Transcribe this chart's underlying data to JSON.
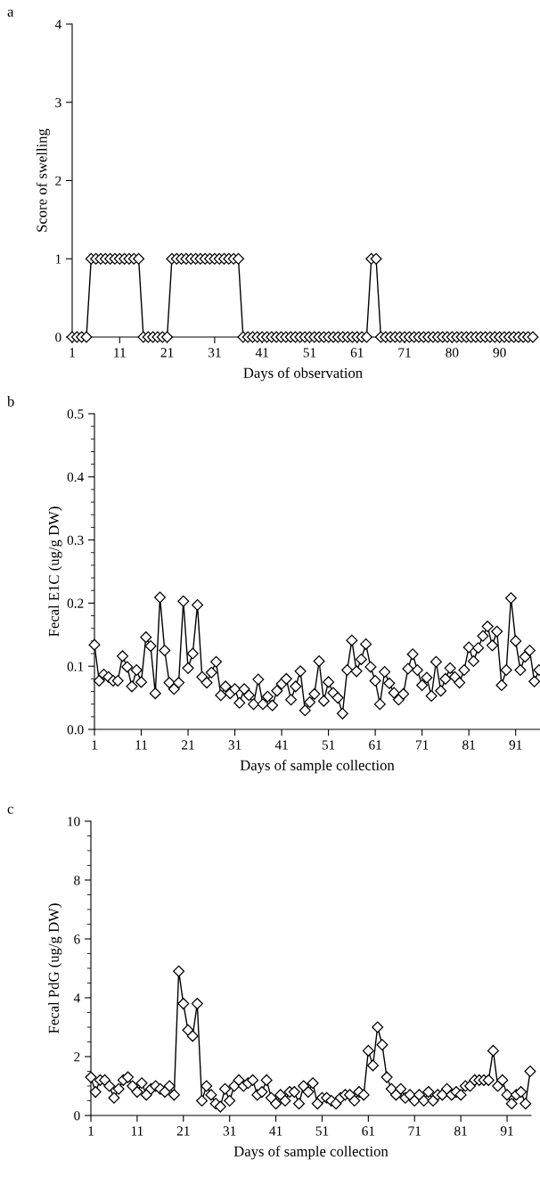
{
  "chart_data": [
    {
      "type": "line",
      "annotations": [
        "a"
      ],
      "xlabel": "Days of observation",
      "ylabel": "Score of swelling",
      "color": "#000000",
      "marker": "diamond",
      "grid": false,
      "categories": [
        "1",
        null,
        null,
        null,
        null,
        null,
        null,
        null,
        null,
        null,
        "11",
        null,
        null,
        null,
        null,
        null,
        null,
        null,
        null,
        null,
        "21",
        null,
        null,
        null,
        null,
        null,
        null,
        null,
        null,
        null,
        "31",
        null,
        null,
        null,
        null,
        null,
        null,
        null,
        null,
        null,
        "41",
        null,
        null,
        null,
        null,
        null,
        null,
        null,
        null,
        null,
        "51",
        null,
        null,
        null,
        null,
        null,
        null,
        null,
        null,
        null,
        "61",
        null,
        null,
        null,
        null,
        null,
        null,
        null,
        null,
        null,
        "71",
        null,
        null,
        null,
        null,
        null,
        null,
        null,
        null,
        null,
        "80",
        null,
        null,
        null,
        null,
        null,
        null,
        null,
        null,
        null,
        "90",
        null,
        null,
        null,
        null,
        null,
        null,
        null
      ],
      "values": [
        0,
        0,
        0,
        0,
        1,
        1,
        1,
        1,
        1,
        1,
        1,
        1,
        1,
        1,
        1,
        0,
        0,
        0,
        0,
        0,
        0,
        1,
        1,
        1,
        1,
        1,
        1,
        1,
        1,
        1,
        1,
        1,
        1,
        1,
        1,
        1,
        0,
        0,
        0,
        0,
        0,
        0,
        0,
        0,
        0,
        0,
        0,
        0,
        0,
        0,
        0,
        0,
        0,
        0,
        0,
        0,
        0,
        0,
        0,
        0,
        0,
        0,
        0,
        1,
        1,
        0,
        0,
        0,
        0,
        0,
        0,
        0,
        0,
        0,
        0,
        0,
        0,
        0,
        0,
        0,
        0,
        0,
        0,
        0,
        0,
        0,
        0,
        0,
        0,
        0,
        0,
        0,
        0,
        0,
        0,
        0,
        0,
        0
      ],
      "ylim": [
        0,
        4
      ],
      "yticks": [
        0,
        1,
        2,
        3,
        4
      ]
    },
    {
      "type": "line",
      "annotations": [
        "b"
      ],
      "xlabel": "Days of sample collection",
      "ylabel": "Fecal E1C (ug/g DW)",
      "color": "#000000",
      "marker": "diamond",
      "grid": false,
      "categories": [
        "1",
        null,
        null,
        null,
        null,
        null,
        null,
        null,
        null,
        null,
        "11",
        null,
        null,
        null,
        null,
        null,
        null,
        null,
        null,
        null,
        "21",
        null,
        null,
        null,
        null,
        null,
        null,
        null,
        null,
        null,
        "31",
        null,
        null,
        null,
        null,
        null,
        null,
        null,
        null,
        null,
        "41",
        null,
        null,
        null,
        null,
        null,
        null,
        null,
        null,
        null,
        "51",
        null,
        null,
        null,
        null,
        null,
        null,
        null,
        null,
        null,
        "61",
        null,
        null,
        null,
        null,
        null,
        null,
        null,
        null,
        null,
        "71",
        null,
        null,
        null,
        null,
        null,
        null,
        null,
        null,
        null,
        "81",
        null,
        null,
        null,
        null,
        null,
        null,
        null,
        null,
        null,
        "91",
        null,
        null,
        null,
        null,
        null
      ],
      "values": [
        0.134,
        0.077,
        0.087,
        0.083,
        0.077,
        0.077,
        0.116,
        0.099,
        0.068,
        0.094,
        0.075,
        0.146,
        0.132,
        0.057,
        0.209,
        0.125,
        0.074,
        0.064,
        0.074,
        0.203,
        0.097,
        0.12,
        0.197,
        0.083,
        0.074,
        0.09,
        0.107,
        0.054,
        0.068,
        0.057,
        0.064,
        0.042,
        0.064,
        0.054,
        0.04,
        0.079,
        0.04,
        0.052,
        0.038,
        0.061,
        0.072,
        0.08,
        0.047,
        0.068,
        0.092,
        0.03,
        0.043,
        0.056,
        0.108,
        0.045,
        0.075,
        0.058,
        0.05,
        0.025,
        0.094,
        0.141,
        0.092,
        0.111,
        0.135,
        0.099,
        0.077,
        0.04,
        0.091,
        0.073,
        0.058,
        0.047,
        0.056,
        0.096,
        0.119,
        0.094,
        0.07,
        0.082,
        0.053,
        0.107,
        0.061,
        0.08,
        0.097,
        0.083,
        0.074,
        0.094,
        0.13,
        0.108,
        0.129,
        0.148,
        0.163,
        0.133,
        0.155,
        0.07,
        0.094,
        0.208,
        0.14,
        0.094,
        0.115,
        0.125,
        0.076,
        0.094
      ],
      "ylim": [
        0,
        0.5
      ],
      "yticks": [
        {
          "value": 0,
          "label": "0.0"
        },
        {
          "value": 0.02,
          "label": null
        },
        {
          "value": 0.04,
          "label": null
        },
        {
          "value": 0.06,
          "label": null
        },
        {
          "value": 0.08,
          "label": null
        },
        {
          "value": 0.1,
          "label": "0.1"
        },
        {
          "value": 0.12,
          "label": null
        },
        {
          "value": 0.14,
          "label": null
        },
        {
          "value": 0.16,
          "label": null
        },
        {
          "value": 0.18,
          "label": null
        },
        {
          "value": 0.2,
          "label": "0.2"
        },
        {
          "value": 0.22,
          "label": null
        },
        {
          "value": 0.24,
          "label": null
        },
        {
          "value": 0.26,
          "label": null
        },
        {
          "value": 0.28,
          "label": null
        },
        {
          "value": 0.3,
          "label": "0.3"
        },
        {
          "value": 0.32,
          "label": null
        },
        {
          "value": 0.34,
          "label": null
        },
        {
          "value": 0.36,
          "label": null
        },
        {
          "value": 0.38,
          "label": null
        },
        {
          "value": 0.4,
          "label": "0.4"
        },
        {
          "value": 0.42,
          "label": null
        },
        {
          "value": 0.44,
          "label": null
        },
        {
          "value": 0.46,
          "label": null
        },
        {
          "value": 0.48,
          "label": null
        },
        {
          "value": 0.5,
          "label": "0.5"
        }
      ]
    },
    {
      "type": "line",
      "annotations": [
        "c"
      ],
      "xlabel": "Days of sample collection",
      "ylabel": "Fecal PdG (ug/g DW)",
      "color": "#000000",
      "marker": "diamond",
      "grid": false,
      "categories": [
        "1",
        null,
        null,
        null,
        null,
        null,
        null,
        null,
        null,
        null,
        "11",
        null,
        null,
        null,
        null,
        null,
        null,
        null,
        null,
        null,
        "21",
        null,
        null,
        null,
        null,
        null,
        null,
        null,
        null,
        null,
        "31",
        null,
        null,
        null,
        null,
        null,
        null,
        null,
        null,
        null,
        "41",
        null,
        null,
        null,
        null,
        null,
        null,
        null,
        null,
        null,
        "51",
        null,
        null,
        null,
        null,
        null,
        null,
        null,
        null,
        null,
        "61",
        null,
        null,
        null,
        null,
        null,
        null,
        null,
        null,
        null,
        "71",
        null,
        null,
        null,
        null,
        null,
        null,
        null,
        null,
        null,
        "81",
        null,
        null,
        null,
        null,
        null,
        null,
        null,
        null,
        null,
        "91",
        null,
        null,
        null,
        null,
        null
      ],
      "values": [
        1.3,
        0.8,
        1.2,
        1.2,
        1.0,
        0.6,
        0.9,
        1.2,
        1.3,
        1.0,
        0.8,
        1.1,
        0.7,
        0.9,
        1.0,
        0.9,
        0.8,
        1.0,
        0.7,
        4.9,
        3.8,
        2.9,
        2.7,
        3.8,
        0.5,
        1.0,
        0.7,
        0.4,
        0.3,
        0.9,
        0.5,
        1.0,
        1.2,
        1.0,
        1.1,
        1.2,
        0.7,
        0.8,
        1.2,
        0.6,
        0.4,
        0.7,
        0.5,
        0.8,
        0.8,
        0.4,
        1.0,
        0.8,
        1.1,
        0.4,
        0.6,
        0.6,
        0.5,
        0.4,
        0.6,
        0.7,
        0.7,
        0.5,
        0.8,
        0.7,
        2.2,
        1.7,
        3.0,
        2.4,
        1.3,
        0.9,
        0.7,
        0.9,
        0.6,
        0.7,
        0.5,
        0.7,
        0.5,
        0.8,
        0.5,
        0.7,
        0.7,
        0.9,
        0.7,
        0.8,
        0.7,
        1.0,
        1.0,
        1.2,
        1.2,
        1.2,
        1.2,
        2.2,
        1.0,
        1.2,
        0.7,
        0.4,
        0.7,
        0.8,
        0.4,
        1.5
      ],
      "ylim": [
        0,
        10
      ],
      "yticks": [
        0,
        {
          "value": 0.5,
          "label": null
        },
        {
          "value": 1,
          "label": null
        },
        {
          "value": 1.5,
          "label": null
        },
        2,
        {
          "value": 2.5,
          "label": null
        },
        {
          "value": 3,
          "label": null
        },
        {
          "value": 3.5,
          "label": null
        },
        4,
        {
          "value": 4.5,
          "label": null
        },
        {
          "value": 5,
          "label": null
        },
        {
          "value": 5.5,
          "label": null
        },
        6,
        {
          "value": 6.5,
          "label": null
        },
        {
          "value": 7,
          "label": null
        },
        {
          "value": 7.5,
          "label": null
        },
        8,
        {
          "value": 8.5,
          "label": null
        },
        {
          "value": 9,
          "label": null
        },
        {
          "value": 9.5,
          "label": null
        },
        10
      ]
    }
  ]
}
